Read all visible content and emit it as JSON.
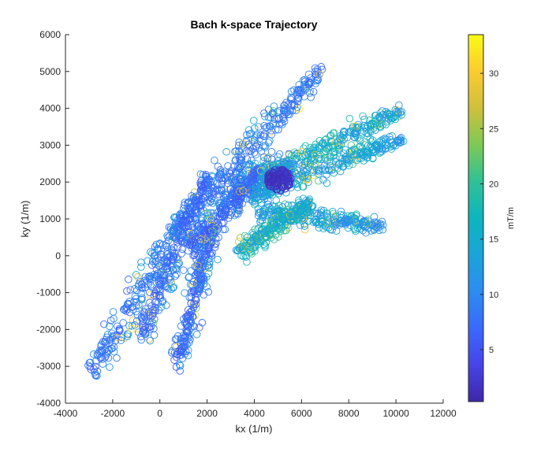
{
  "chart_data": {
    "type": "scatter",
    "title": "Bach k-space Trajectory",
    "xlabel": "kx (1/m)",
    "ylabel": "ky (1/m)",
    "xlim": [
      -4000,
      12000
    ],
    "ylim": [
      -4000,
      6000
    ],
    "xticks": [
      "-4000",
      "-2000",
      "0",
      "2000",
      "4000",
      "6000",
      "8000",
      "10000",
      "12000"
    ],
    "yticks": [
      "-4000",
      "-3000",
      "-2000",
      "-1000",
      "0",
      "1000",
      "2000",
      "3000",
      "4000",
      "5000",
      "6000"
    ],
    "colorbar": {
      "label": "mT/m",
      "range": [
        0.3,
        33.5
      ],
      "ticks": [
        "5",
        "10",
        "15",
        "20",
        "25",
        "30"
      ],
      "colormap": "parula"
    },
    "grid": false,
    "marker": "open-circle",
    "clusters": [
      {
        "name": "upper-arm",
        "from": [
          1500,
          1300
        ],
        "to": [
          6900,
          5050
        ],
        "spread": 380,
        "g_mean": 7
      },
      {
        "name": "center-blob",
        "from": [
          3000,
          1700
        ],
        "to": [
          5600,
          2400
        ],
        "spread": 550,
        "g_mean": 6
      },
      {
        "name": "left-arm",
        "from": [
          -2900,
          -3150
        ],
        "to": [
          1500,
          1500
        ],
        "spread": 460,
        "g_mean": 7
      },
      {
        "name": "lower-left-arm",
        "from": [
          -800,
          -2200
        ],
        "to": [
          2000,
          2200
        ],
        "spread": 420,
        "g_mean": 6
      },
      {
        "name": "lower-mid-arm",
        "from": [
          700,
          -2950
        ],
        "to": [
          2300,
          900
        ],
        "spread": 320,
        "g_mean": 6
      },
      {
        "name": "middle-band",
        "from": [
          1300,
          200
        ],
        "to": [
          4200,
          2300
        ],
        "spread": 420,
        "g_mean": 6
      },
      {
        "name": "right-arm-upper",
        "from": [
          4200,
          2100
        ],
        "to": [
          10200,
          3950
        ],
        "spread": 260,
        "g_mean": 13
      },
      {
        "name": "right-arm-lower",
        "from": [
          3800,
          1600
        ],
        "to": [
          10300,
          3200
        ],
        "spread": 250,
        "g_mean": 12
      },
      {
        "name": "right-finger",
        "from": [
          4200,
          1200
        ],
        "to": [
          9400,
          800
        ],
        "spread": 240,
        "g_mean": 11
      },
      {
        "name": "lower-band",
        "from": [
          3300,
          100
        ],
        "to": [
          6400,
          1400
        ],
        "spread": 260,
        "g_mean": 14
      }
    ],
    "dense_core": {
      "center": [
        5050,
        2050
      ],
      "radius": 400
    }
  }
}
